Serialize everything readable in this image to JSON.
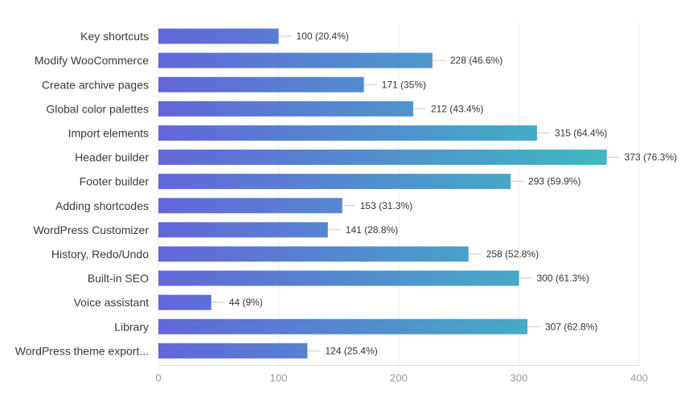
{
  "chart_data": {
    "type": "bar",
    "orientation": "horizontal",
    "categories": [
      "Key shortcuts",
      "Modify WooCommerce",
      "Create archive pages",
      "Global color palettes",
      "Import elements",
      "Header builder",
      "Footer builder",
      "Adding shortcodes",
      "WordPress Customizer",
      "History, Redo/Undo",
      "Built-in SEO",
      "Voice assistant",
      "Library",
      "WordPress theme export..."
    ],
    "values": [
      100,
      228,
      171,
      212,
      315,
      373,
      293,
      153,
      141,
      258,
      300,
      44,
      307,
      124
    ],
    "value_labels": [
      "100 (20.4%)",
      "228 (46.6%)",
      "171 (35%)",
      "212 (43.4%)",
      "315 (64.4%)",
      "373 (76.3%)",
      "293 (59.9%)",
      "153 (31.3%)",
      "141 (28.8%)",
      "258 (52.8%)",
      "300 (61.3%)",
      "44 (9%)",
      "307 (62.8%)",
      "124 (25.4%)"
    ],
    "xlim": [
      0,
      400
    ],
    "xticks": [
      0,
      100,
      200,
      300,
      400
    ],
    "xtick_labels": [
      "0",
      "100",
      "200",
      "300",
      "400"
    ],
    "title": "",
    "xlabel": "",
    "ylabel": "",
    "grid": true,
    "colors": {
      "gradient_start": "#6366d9",
      "gradient_end": "#3cbfbf"
    }
  }
}
